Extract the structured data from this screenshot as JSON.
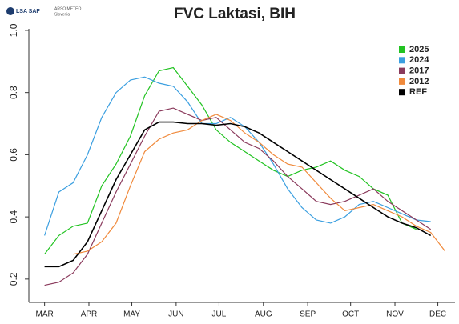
{
  "logos": {
    "left": "LSA SAF",
    "right": "ARSO METEO",
    "right_sub": "Slovenia"
  },
  "chart_data": {
    "type": "line",
    "title": "FVC Laktasi, BIH",
    "x": [
      60,
      70,
      80,
      90,
      100,
      110,
      120,
      130,
      140,
      150,
      160,
      170,
      180,
      190,
      200,
      210,
      220,
      230,
      240,
      250,
      260,
      270,
      280,
      290,
      300,
      310,
      320,
      330,
      340
    ],
    "series": [
      {
        "name": "2025",
        "color": "#22c322",
        "values": [
          0.28,
          0.34,
          0.37,
          0.38,
          0.5,
          0.57,
          0.66,
          0.79,
          0.87,
          0.88,
          0.82,
          0.76,
          0.68,
          0.64,
          0.61,
          0.58,
          0.55,
          0.53,
          0.55,
          0.56,
          0.58,
          0.55,
          0.53,
          0.49,
          0.47,
          0.38,
          0.36,
          null,
          null
        ]
      },
      {
        "name": "2024",
        "color": "#3b9fe0",
        "values": [
          0.34,
          0.48,
          0.51,
          0.6,
          0.72,
          0.8,
          0.84,
          0.85,
          0.83,
          0.82,
          0.77,
          0.7,
          0.7,
          0.72,
          0.69,
          0.64,
          0.57,
          0.49,
          0.43,
          0.39,
          0.38,
          0.4,
          0.44,
          0.45,
          0.43,
          0.41,
          0.39,
          0.385,
          null
        ]
      },
      {
        "name": "2017",
        "color": "#8a3a5c",
        "values": [
          0.18,
          0.19,
          0.22,
          0.28,
          0.38,
          0.48,
          0.57,
          0.66,
          0.74,
          0.75,
          0.73,
          0.71,
          0.72,
          0.68,
          0.64,
          0.62,
          0.58,
          0.53,
          0.49,
          0.45,
          0.44,
          0.45,
          0.47,
          0.49,
          0.45,
          0.42,
          0.39,
          0.36,
          null
        ]
      },
      {
        "name": "2012",
        "color": "#f08a3c",
        "values": [
          null,
          null,
          0.28,
          0.29,
          0.32,
          0.38,
          0.5,
          0.61,
          0.65,
          0.67,
          0.68,
          0.71,
          0.73,
          0.71,
          0.67,
          0.64,
          0.6,
          0.57,
          0.56,
          0.51,
          0.46,
          0.42,
          0.43,
          0.44,
          0.42,
          0.4,
          0.37,
          0.35,
          0.29
        ]
      },
      {
        "name": "REF",
        "color": "#000000",
        "values": [
          0.24,
          0.24,
          0.26,
          0.32,
          0.42,
          0.52,
          0.6,
          0.68,
          0.705,
          0.705,
          0.7,
          0.7,
          0.695,
          0.7,
          0.69,
          0.67,
          0.64,
          0.61,
          0.58,
          0.55,
          0.52,
          0.49,
          0.46,
          0.43,
          0.4,
          0.38,
          0.365,
          0.34,
          null
        ]
      }
    ],
    "xlim": [
      49,
      347
    ],
    "xticks": [
      {
        "value": 60,
        "label": "MAR"
      },
      {
        "value": 91,
        "label": "APR"
      },
      {
        "value": 121,
        "label": "MAY"
      },
      {
        "value": 152,
        "label": "JUN"
      },
      {
        "value": 182,
        "label": "JUL"
      },
      {
        "value": 213,
        "label": "AUG"
      },
      {
        "value": 244,
        "label": "SEP"
      },
      {
        "value": 274,
        "label": "OCT"
      },
      {
        "value": 305,
        "label": "NOV"
      },
      {
        "value": 335,
        "label": "DEC"
      }
    ],
    "ylim": [
      0.125,
      1.005
    ],
    "yticks": [
      {
        "value": 0.2,
        "label": "0.2"
      },
      {
        "value": 0.4,
        "label": "0.4"
      },
      {
        "value": 0.6,
        "label": "0.6"
      },
      {
        "value": 0.8,
        "label": "0.8"
      },
      {
        "value": 1.0,
        "label": "1.0"
      }
    ],
    "legend": "topright"
  }
}
